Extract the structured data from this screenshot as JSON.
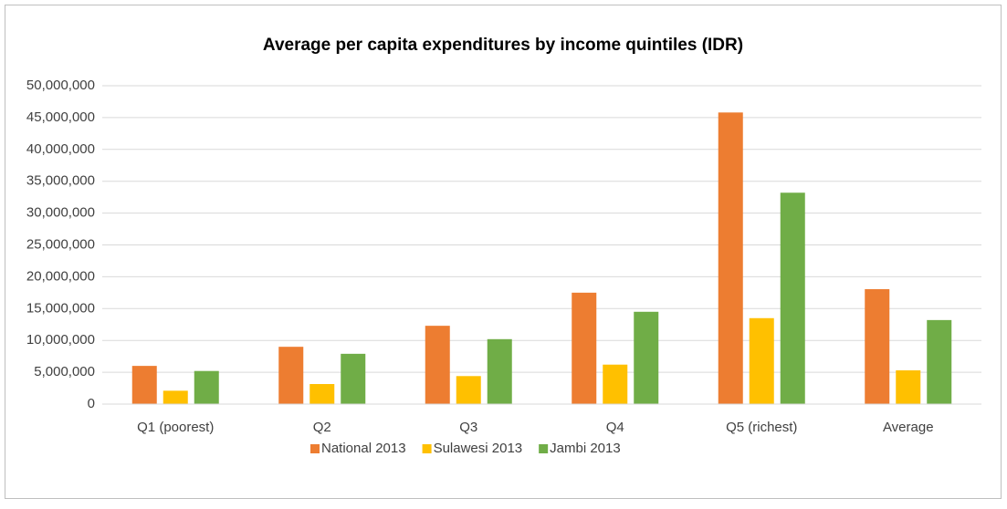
{
  "chart_data": {
    "type": "bar",
    "title": "Average per capita expenditures by income quintiles (IDR)",
    "categories": [
      "Q1 (poorest)",
      "Q2",
      "Q3",
      "Q4",
      "Q5 (richest)",
      "Average"
    ],
    "series": [
      {
        "name": "National 2013",
        "color": "#ED7D31",
        "values": [
          6000000,
          9000000,
          12300000,
          17500000,
          45800000,
          18050000
        ]
      },
      {
        "name": "Sulawesi 2013",
        "color": "#FFC000",
        "values": [
          2100000,
          3150000,
          4400000,
          6200000,
          13500000,
          5300000
        ]
      },
      {
        "name": "Jambi 2013",
        "color": "#70AD47",
        "values": [
          5200000,
          7900000,
          10200000,
          14500000,
          33200000,
          13200000
        ]
      }
    ],
    "ylim": [
      0,
      50000000
    ],
    "yticks": [
      0,
      {
        "value": 5000000,
        "label": "5,000,000"
      },
      {
        "value": 10000000,
        "label": "10,000,000"
      },
      {
        "value": 15000000,
        "label": "15,000,000"
      },
      {
        "value": 20000000,
        "label": "20,000,000"
      },
      {
        "value": 25000000,
        "label": "25,000,000"
      },
      {
        "value": 30000000,
        "label": "30,000,000"
      },
      {
        "value": 35000000,
        "label": "35,000,000"
      },
      {
        "value": 40000000,
        "label": "40,000,000"
      },
      {
        "value": 45000000,
        "label": "45,000,000"
      },
      {
        "value": 50000000,
        "label": "50,000,000"
      }
    ],
    "grid": true,
    "legend": "bottom"
  }
}
